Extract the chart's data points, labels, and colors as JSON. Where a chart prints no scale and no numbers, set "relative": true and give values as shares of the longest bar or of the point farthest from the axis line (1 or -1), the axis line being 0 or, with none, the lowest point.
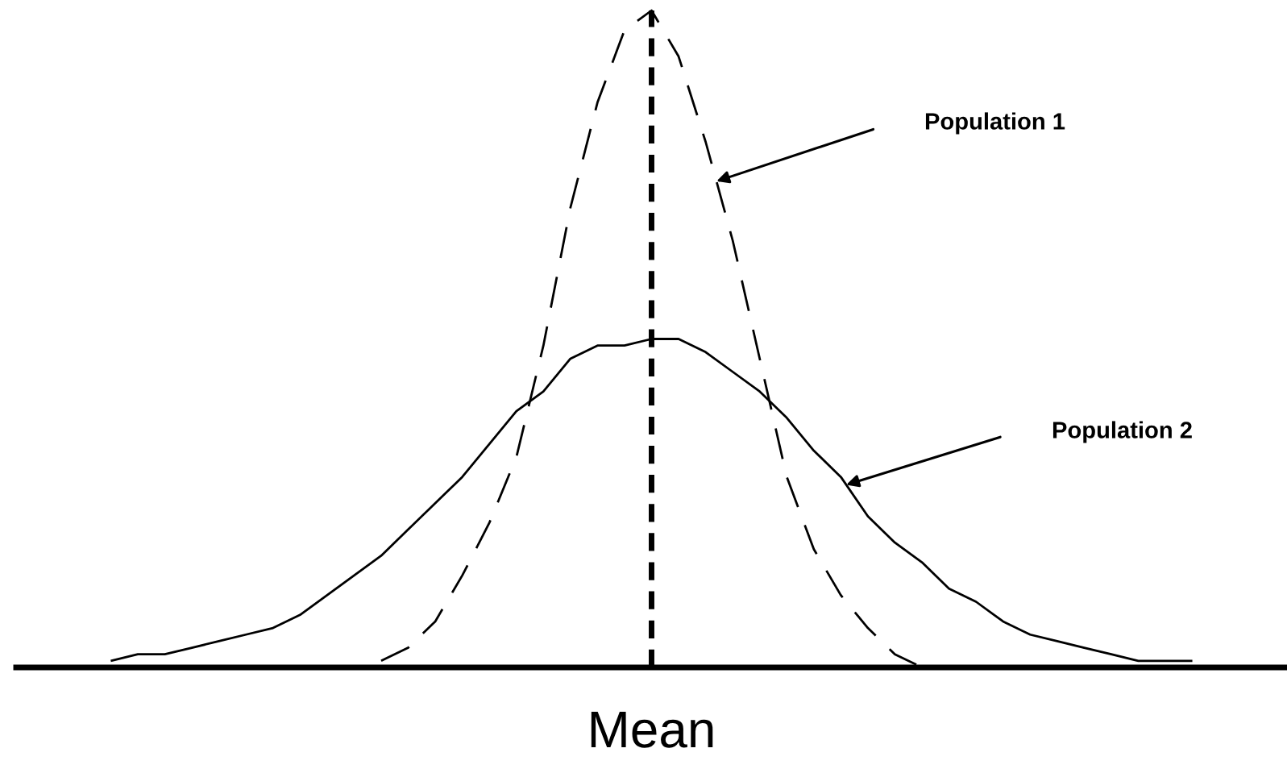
{
  "chart_data": {
    "type": "line",
    "relative": true,
    "categories": [
      null,
      null,
      null,
      null,
      null,
      null,
      null,
      null,
      null,
      null,
      null,
      null,
      null,
      null,
      null,
      null,
      null,
      null,
      null,
      null,
      null,
      null,
      null,
      null,
      null,
      null,
      null,
      null,
      null,
      null,
      null,
      null,
      null,
      null,
      null,
      null,
      null,
      null,
      null,
      null,
      null,
      null,
      null,
      null,
      null,
      null,
      null
    ],
    "series": [
      {
        "color": "#000000",
        "line_style": "dashed",
        "values": [
          null,
          null,
          null,
          null,
          null,
          null,
          null,
          null,
          null,
          null,
          null,
          null,
          null,
          0.01,
          0.03,
          0.07,
          0.14,
          0.22,
          0.32,
          0.49,
          0.7,
          0.86,
          0.97,
          1.0,
          0.93,
          0.8,
          0.65,
          0.47,
          0.29,
          0.18,
          0.11,
          0.06,
          0.02,
          0.0,
          null,
          null,
          null,
          null,
          null,
          null,
          null,
          null,
          null,
          null,
          null,
          null,
          null
        ]
      },
      {
        "color": "#000000",
        "line_style": "solid",
        "values": [
          null,
          null,
          null,
          0.01,
          0.02,
          0.02,
          0.03,
          0.04,
          0.05,
          0.06,
          0.08,
          0.11,
          0.14,
          0.17,
          0.21,
          0.25,
          0.29,
          0.34,
          0.39,
          0.42,
          0.47,
          0.49,
          0.49,
          0.5,
          0.5,
          0.48,
          0.45,
          0.42,
          0.38,
          0.33,
          0.29,
          0.23,
          0.19,
          0.16,
          0.12,
          0.1,
          0.07,
          0.05,
          0.04,
          0.03,
          0.02,
          0.01,
          0.01,
          0.01,
          null,
          null,
          null
        ]
      }
    ],
    "annotations": [
      "Population 1",
      "Population 2",
      "Mean"
    ]
  }
}
